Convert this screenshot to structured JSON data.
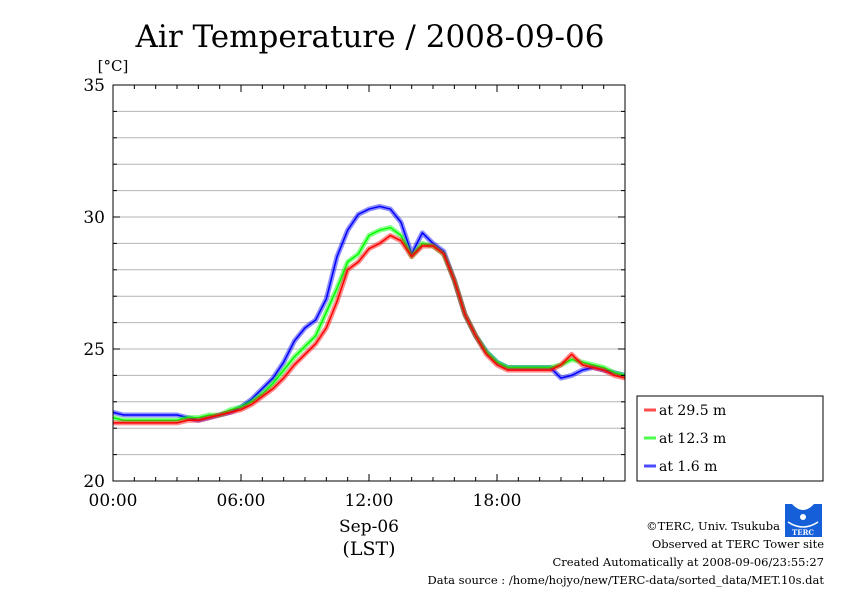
{
  "chart_data": {
    "type": "line",
    "title": "Air Temperature / 2008-09-06",
    "ylabel": "[°C]",
    "xlabel": "Sep-06",
    "xlabel2": "(LST)",
    "ylim": [
      20,
      35
    ],
    "xlim": [
      0,
      24
    ],
    "yticks": [
      {
        "v": 20,
        "label": "20"
      },
      {
        "v": 25,
        "label": "25"
      },
      {
        "v": 30,
        "label": "30"
      },
      {
        "v": 35,
        "label": "35"
      }
    ],
    "xticks": [
      {
        "v": 0,
        "label": "00:00"
      },
      {
        "v": 6,
        "label": "06:00"
      },
      {
        "v": 12,
        "label": "12:00"
      },
      {
        "v": 18,
        "label": "18:00"
      }
    ],
    "grid": "horizontal every 1 °C",
    "legend_position": "right-bottom outside",
    "x": [
      0,
      0.5,
      1,
      1.5,
      2,
      2.5,
      3,
      3.5,
      4,
      4.5,
      5,
      5.5,
      6,
      6.5,
      7,
      7.5,
      8,
      8.5,
      9,
      9.5,
      10,
      10.5,
      11,
      11.5,
      12,
      12.5,
      13,
      13.5,
      14,
      14.5,
      15,
      15.5,
      16,
      16.5,
      17,
      17.5,
      18,
      18.5,
      19,
      19.5,
      20,
      20.5,
      21,
      21.5,
      22,
      22.5,
      23,
      23.5,
      24
    ],
    "series": [
      {
        "name": "at 29.5 m",
        "color": "#ff0000",
        "values": [
          22.2,
          22.2,
          22.2,
          22.2,
          22.2,
          22.2,
          22.2,
          22.3,
          22.3,
          22.4,
          22.5,
          22.6,
          22.7,
          22.9,
          23.2,
          23.5,
          23.9,
          24.4,
          24.8,
          25.2,
          25.8,
          26.8,
          28.0,
          28.3,
          28.8,
          29.0,
          29.3,
          29.1,
          28.5,
          28.9,
          28.9,
          28.6,
          27.6,
          26.3,
          25.5,
          24.8,
          24.4,
          24.2,
          24.2,
          24.2,
          24.2,
          24.2,
          24.4,
          24.8,
          24.4,
          24.3,
          24.2,
          24.0,
          23.9
        ]
      },
      {
        "name": "at 12.3 m",
        "color": "#00ff00",
        "values": [
          22.4,
          22.3,
          22.3,
          22.3,
          22.3,
          22.3,
          22.3,
          22.4,
          22.4,
          22.5,
          22.5,
          22.7,
          22.8,
          23.0,
          23.3,
          23.7,
          24.2,
          24.7,
          25.1,
          25.5,
          26.4,
          27.3,
          28.3,
          28.6,
          29.3,
          29.5,
          29.6,
          29.3,
          28.5,
          29.0,
          28.9,
          28.6,
          27.6,
          26.3,
          25.5,
          24.9,
          24.5,
          24.3,
          24.3,
          24.3,
          24.3,
          24.3,
          24.4,
          24.6,
          24.5,
          24.4,
          24.3,
          24.1,
          24.0
        ]
      },
      {
        "name": "at 1.6 m",
        "color": "#0000ff",
        "values": [
          22.6,
          22.5,
          22.5,
          22.5,
          22.5,
          22.5,
          22.5,
          22.4,
          22.3,
          22.4,
          22.5,
          22.6,
          22.8,
          23.1,
          23.5,
          23.9,
          24.5,
          25.3,
          25.8,
          26.1,
          26.9,
          28.5,
          29.5,
          30.1,
          30.3,
          30.4,
          30.3,
          29.8,
          28.6,
          29.4,
          29.0,
          28.7,
          27.6,
          26.3,
          25.5,
          24.9,
          24.5,
          24.3,
          24.3,
          24.3,
          24.3,
          24.3,
          23.9,
          24.0,
          24.2,
          24.3,
          24.2,
          24.1,
          24.0
        ]
      }
    ]
  },
  "footer": {
    "copyright": "©TERC, Univ. Tsukuba",
    "site": "Observed at TERC Tower site",
    "created": "Created Automatically at 2008-09-06/23:55:27",
    "source": "Data source : /home/hojyo/new/TERC-data/sorted_data/MET.10s.dat",
    "logo_text": "TERC"
  }
}
